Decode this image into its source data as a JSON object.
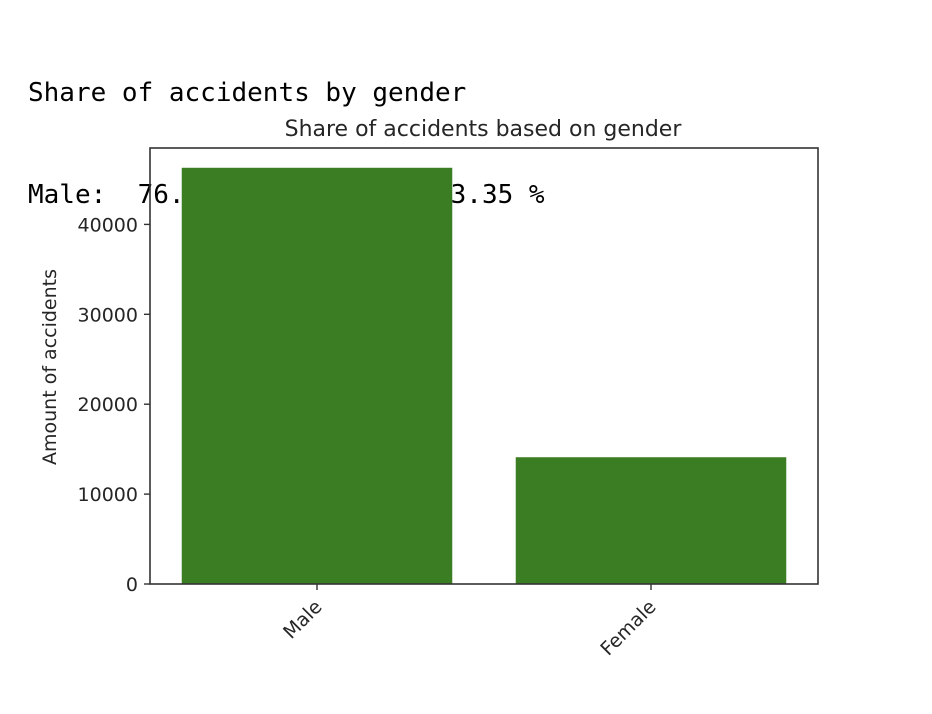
{
  "output": {
    "line1": "Share of accidents by gender",
    "line2": "Male:  76.65 % | Female:  23.35 %"
  },
  "chart_data": {
    "type": "bar",
    "title": "Share of accidents based on gender",
    "xlabel": "",
    "ylabel": "Amount of accidents",
    "categories": [
      "Male",
      "Female"
    ],
    "values": [
      46300,
      14100
    ],
    "ylim": [
      0,
      48500
    ],
    "yticks": [
      0,
      10000,
      20000,
      30000,
      40000
    ],
    "ytick_labels": [
      "0",
      "10000",
      "20000",
      "30000",
      "40000"
    ],
    "bar_color": "#3a7d22",
    "grid": false,
    "legend": "none"
  }
}
